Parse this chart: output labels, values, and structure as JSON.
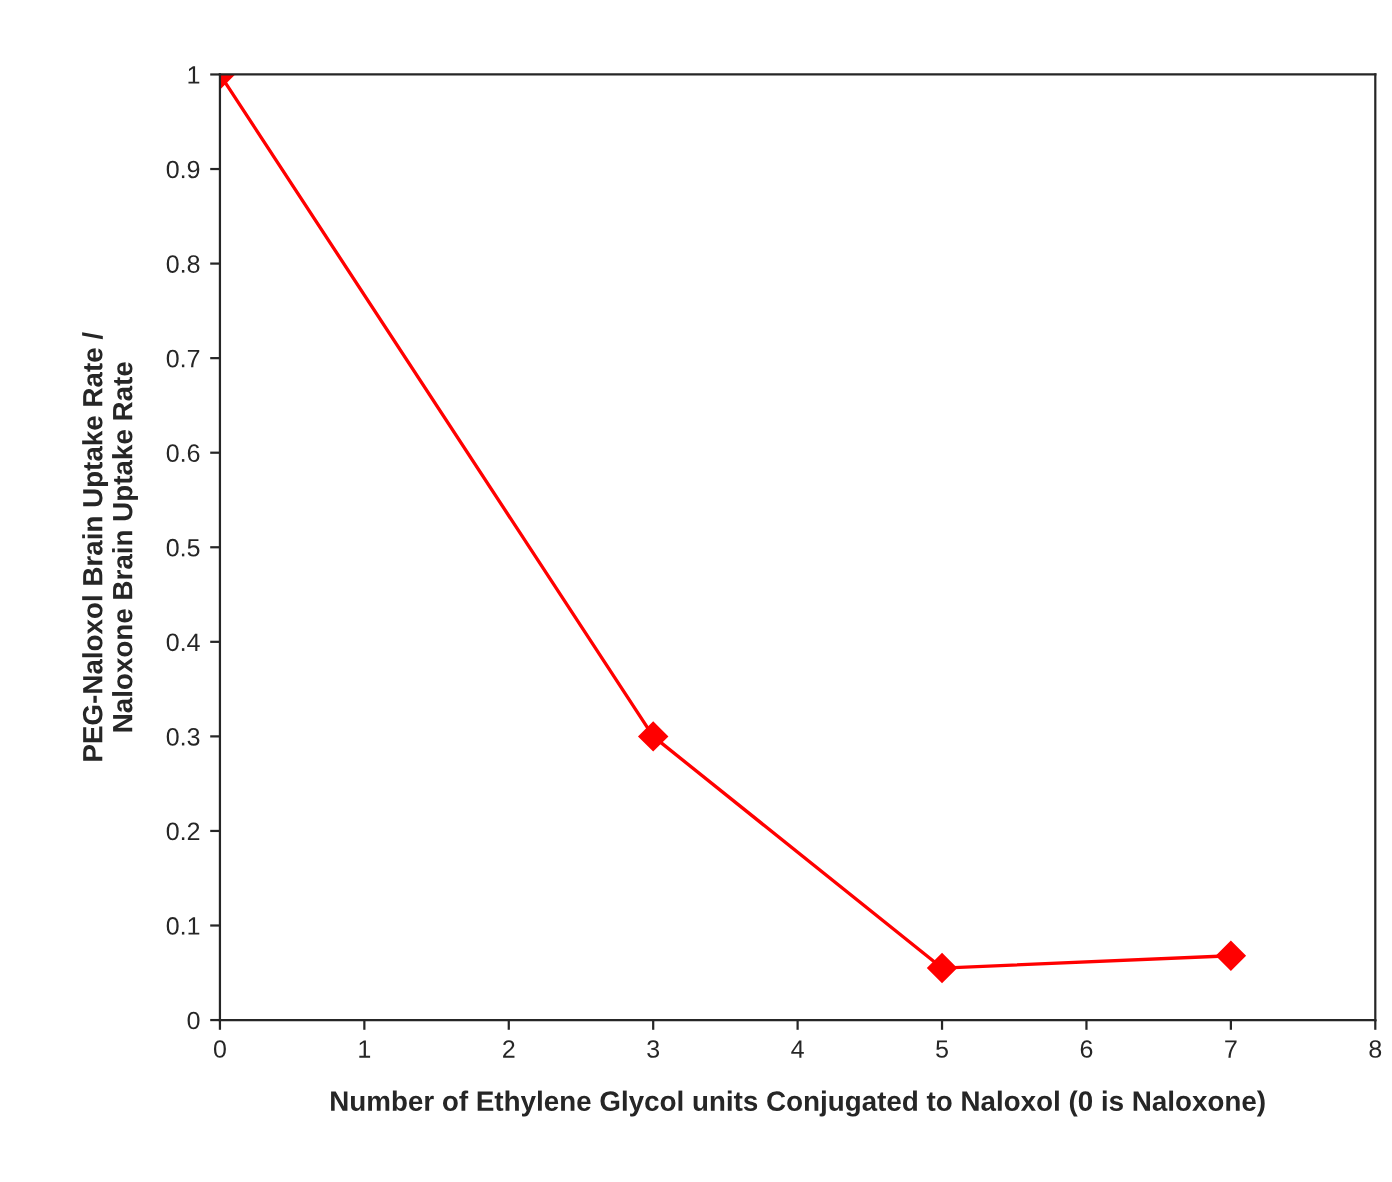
{
  "chart_data": {
    "type": "line",
    "xlabel": "Number of Ethylene Glycol units Conjugated to Naloxol (0 is Naloxone)",
    "ylabel": "PEG-Naloxol Brain Uptake Rate /\nNaloxone Brain Uptake Rate",
    "x": [
      0,
      3,
      5,
      7
    ],
    "series": [
      {
        "color": "#ff0000",
        "values": [
          1.0,
          0.3,
          0.055,
          0.068
        ]
      }
    ],
    "xlim": [
      0,
      8
    ],
    "xticks": [
      0,
      1,
      2,
      3,
      4,
      5,
      6,
      7,
      8
    ],
    "ylim": [
      0,
      1
    ],
    "yticks": [
      0,
      0.1,
      0.2,
      0.3,
      0.4,
      0.5,
      0.6,
      0.7,
      0.8,
      0.9,
      1
    ],
    "grid": false,
    "legend": false,
    "marker": "diamond",
    "line_style": "solid"
  }
}
